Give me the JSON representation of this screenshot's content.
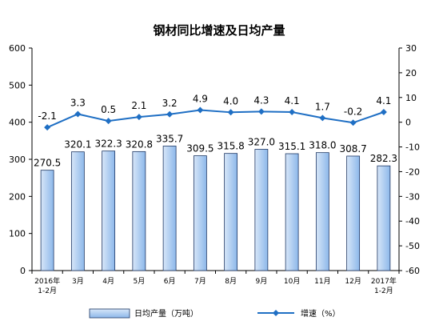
{
  "chart_data": {
    "type": "bar",
    "title": "钢材同比增速及日均产量",
    "categories": [
      [
        "2016年",
        "1-2月"
      ],
      [
        "3月"
      ],
      [
        "4月"
      ],
      [
        "5月"
      ],
      [
        "6月"
      ],
      [
        "7月"
      ],
      [
        "8月"
      ],
      [
        "9月"
      ],
      [
        "10月"
      ],
      [
        "11月"
      ],
      [
        "12月"
      ],
      [
        "2017年",
        "1-2月"
      ]
    ],
    "series": [
      {
        "name": "日均产量（万吨）",
        "type": "bar",
        "axis": "left",
        "values": [
          270.5,
          320.1,
          322.3,
          320.8,
          335.7,
          309.5,
          315.8,
          327.0,
          315.1,
          318.0,
          308.7,
          282.3
        ],
        "labels": [
          "270.5",
          "320.1",
          "322.3",
          "320.8",
          "335.7",
          "309.5",
          "315.8",
          "327.0",
          "315.1",
          "318.0",
          "308.7",
          "282.3"
        ]
      },
      {
        "name": "增速（%）",
        "type": "line",
        "axis": "right",
        "values": [
          -2.1,
          3.3,
          0.5,
          2.1,
          3.2,
          4.9,
          4.0,
          4.3,
          4.1,
          1.7,
          -0.2,
          4.1
        ],
        "labels": [
          "-2.1",
          "3.3",
          "0.5",
          "2.1",
          "3.2",
          "4.9",
          "4.0",
          "4.3",
          "4.1",
          "1.7",
          "-0.2",
          "4.1"
        ]
      }
    ],
    "left_axis": {
      "ylim": [
        0,
        600
      ],
      "ticks": [
        "0",
        "100",
        "200",
        "300",
        "400",
        "500",
        "600"
      ]
    },
    "right_axis": {
      "ylim": [
        -60,
        30
      ],
      "ticks": [
        "-60",
        "-50",
        "-40",
        "-30",
        "-20",
        "-10",
        "0",
        "10",
        "20",
        "30"
      ]
    },
    "grid": false,
    "legend_position": "bottom",
    "colors": {
      "bar_fill_light": "#d7e6f8",
      "bar_fill_dark": "#8db8ea",
      "bar_stroke": "#1f3864",
      "line": "#1f6fc4",
      "axis": "#000000"
    }
  }
}
